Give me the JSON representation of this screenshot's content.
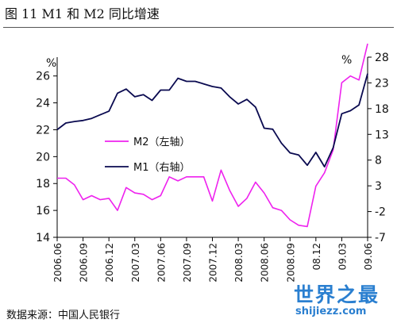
{
  "title": "图 11  M1 和 M2 同比增速",
  "source": "数据来源：中国人民银行",
  "watermark": {
    "main": "世界之最",
    "sub": "shijiezz.com"
  },
  "colors": {
    "m2": "#ee22ee",
    "m1": "#0a0a50",
    "axis": "#000000"
  },
  "chart_data": {
    "type": "line",
    "title": "图 11  M1 和 M2 同比增速",
    "left_axis": {
      "unit_label": "%",
      "range": [
        14,
        27.4
      ],
      "ticks": [
        14,
        16,
        18,
        20,
        22,
        24,
        26
      ]
    },
    "right_axis": {
      "unit_label": "%",
      "range": [
        -7,
        28
      ],
      "ticks": [
        -7,
        -2,
        3,
        8,
        13,
        18,
        23,
        28
      ]
    },
    "x_tick_labels": [
      "2006.06",
      "2006.09",
      "2006.12",
      "2007.03",
      "2007.06",
      "2007.09",
      "2007.12",
      "2008.03",
      "2008.06",
      "2008.09",
      "08.12",
      "09.03",
      "09.06"
    ],
    "x_tick_months": [
      0,
      3,
      6,
      9,
      12,
      15,
      18,
      21,
      24,
      27,
      30,
      33,
      36
    ],
    "grid": false,
    "legend_position": "center-left",
    "series": [
      {
        "name": "M2（左轴）",
        "axis": "left",
        "months": [
          0,
          1,
          2,
          3,
          4,
          5,
          6,
          7,
          8,
          9,
          10,
          11,
          12,
          13,
          14,
          15,
          16,
          17,
          18,
          19,
          20,
          21,
          22,
          23,
          24,
          25,
          26,
          27,
          28,
          29,
          30,
          31,
          32,
          33,
          34,
          35,
          36
        ],
        "values": [
          18.4,
          18.4,
          17.9,
          16.8,
          17.1,
          16.8,
          16.9,
          16.0,
          17.7,
          17.3,
          17.2,
          16.8,
          17.1,
          18.5,
          18.2,
          18.5,
          18.5,
          18.5,
          16.7,
          19.0,
          17.5,
          16.3,
          16.9,
          18.1,
          17.3,
          16.2,
          16.0,
          15.3,
          14.9,
          14.8,
          17.8,
          18.8,
          20.5,
          25.5,
          26.0,
          25.7,
          28.4
        ]
      },
      {
        "name": "M1（右轴）",
        "axis": "right",
        "months": [
          0,
          1,
          2,
          3,
          4,
          5,
          6,
          7,
          8,
          9,
          10,
          11,
          12,
          13,
          14,
          15,
          16,
          17,
          18,
          19,
          20,
          21,
          22,
          23,
          24,
          25,
          26,
          27,
          28,
          29,
          30,
          31,
          32,
          33,
          34,
          35,
          36
        ],
        "values": [
          13.9,
          15.2,
          15.5,
          15.7,
          16.1,
          16.8,
          17.5,
          21.0,
          21.8,
          20.3,
          20.7,
          19.6,
          21.6,
          21.6,
          23.9,
          23.3,
          23.3,
          22.8,
          22.3,
          22.0,
          20.3,
          18.9,
          19.8,
          18.3,
          14.2,
          14.0,
          11.3,
          9.4,
          9.0,
          7.0,
          9.5,
          6.7,
          10.4,
          17.0,
          17.6,
          18.7,
          24.8
        ]
      }
    ]
  }
}
